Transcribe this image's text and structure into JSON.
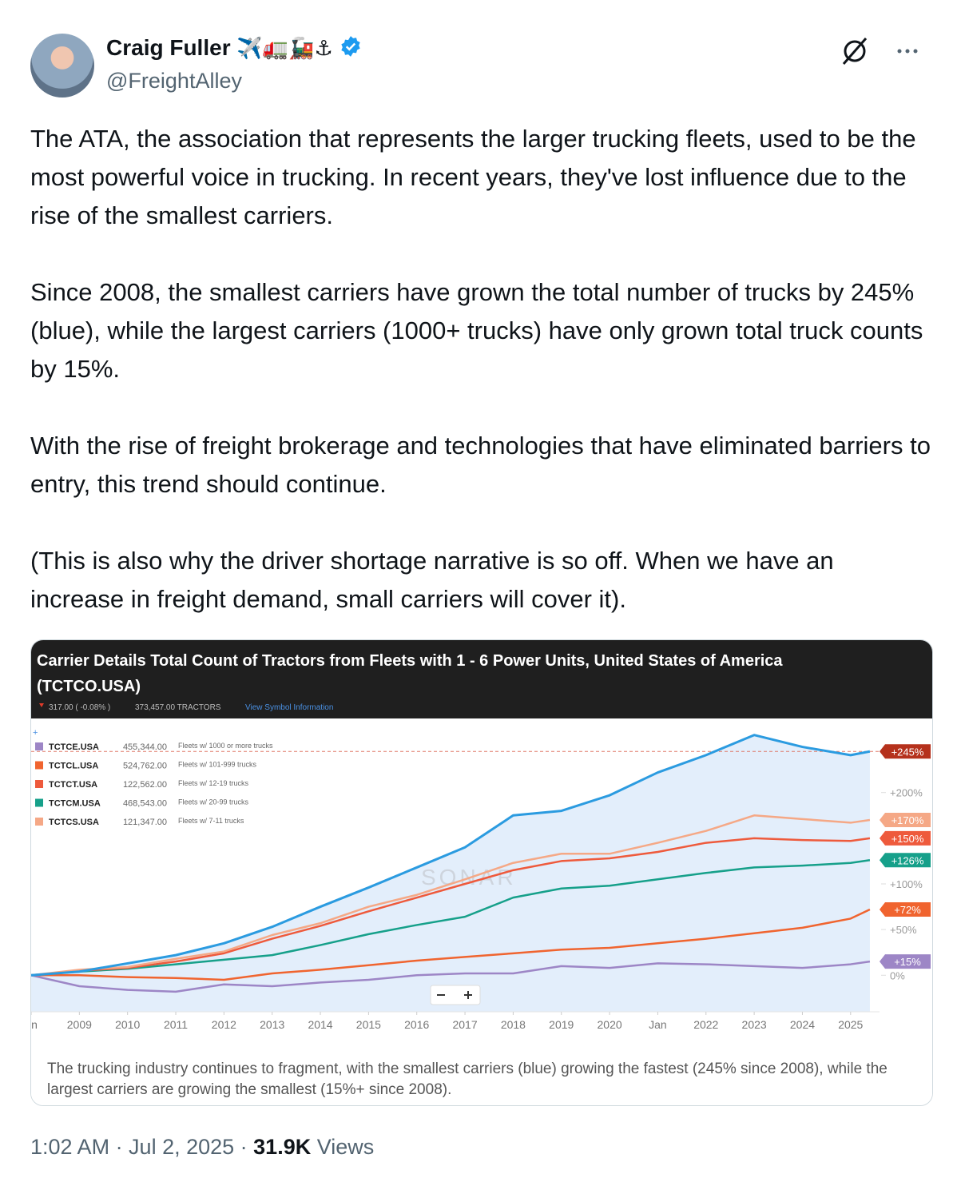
{
  "tweet": {
    "author": {
      "name": "Craig Fuller",
      "emoji": "✈️🚛🚂⚓",
      "handle": "@FreightAlley"
    },
    "paragraphs": [
      "The ATA, the association that represents the larger trucking fleets, used to be the most powerful voice in trucking. In recent years, they've lost influence due to the rise of the smallest carriers.",
      "Since 2008, the smallest carriers have grown the total number of trucks by 245% (blue), while the largest carriers (1000+ trucks) have only grown total truck counts by 15%.",
      "With the rise of freight brokerage and technologies that have eliminated barriers to entry, this trend should continue.",
      "(This is also why the driver shortage narrative is so off. When we have an increase in freight demand, small carriers will cover it)."
    ],
    "timestamp": "1:02 AM · Jul 2, 2025",
    "views_count": "31.9K",
    "views_label": "Views"
  },
  "chart_data": {
    "type": "line",
    "title": "Carrier Details Total Count of Tractors from Fleets with 1 - 6 Power Units, United States of America",
    "symbol": "(TCTCO.USA)",
    "quote": "317.00 ( -0.08% )",
    "units": "373,457.00 TRACTORS",
    "link": "View Symbol Information",
    "watermark": "SONAR",
    "caption": "The trucking industry continues to fragment, with the smallest carriers (blue) growing the fastest (245% since 2008), while the largest carriers are growing the smallest (15%+ since 2008).",
    "x": [
      2008,
      2009,
      2010,
      2011,
      2012,
      2013,
      2014,
      2015,
      2016,
      2017,
      2018,
      2019,
      2020,
      2021,
      2022,
      2023,
      2024,
      2025,
      2025.4
    ],
    "xlim": [
      2008,
      2025.6
    ],
    "xticks": [
      {
        "value": 2008,
        "label": "n"
      },
      2009,
      2010,
      2011,
      2012,
      2013,
      2014,
      2015,
      2016,
      2017,
      2018,
      2019,
      2020,
      {
        "value": 2021,
        "label": "Jan"
      },
      2022,
      2023,
      2024,
      2025
    ],
    "ylim": [
      -40,
      275
    ],
    "yticks": [
      {
        "value": 0,
        "label": "0%"
      },
      {
        "value": 50,
        "label": "+50%"
      },
      {
        "value": 100,
        "label": "+100%"
      },
      {
        "value": 200,
        "label": "+200%"
      }
    ],
    "series": [
      {
        "name": "TCTCO.USA",
        "color": "#2b9be0",
        "fill": "#e3eefb",
        "end_label": "+245%",
        "badge": "#b5311c",
        "values": [
          0,
          4,
          13,
          22,
          35,
          53,
          75,
          96,
          118,
          140,
          175,
          180,
          197,
          222,
          241,
          263,
          250,
          241,
          245
        ]
      },
      {
        "name": "TCTCS.USA",
        "color": "#f5a886",
        "end_label": "+170%",
        "legend_value": "121,347.00",
        "legend_desc": "Fleets w/ 7-11 trucks",
        "values": [
          0,
          6,
          9,
          18,
          26,
          44,
          57,
          75,
          88,
          105,
          123,
          133,
          133,
          145,
          158,
          175,
          171,
          167,
          170
        ]
      },
      {
        "name": "TCTCT.USA",
        "color": "#ee5a3c",
        "end_label": "+150%",
        "legend_value": "122,562.00",
        "legend_desc": "Fleets w/ 12-19 trucks",
        "values": [
          0,
          5,
          8,
          15,
          24,
          40,
          54,
          70,
          85,
          100,
          115,
          125,
          128,
          135,
          145,
          150,
          148,
          147,
          150
        ]
      },
      {
        "name": "TCTCM.USA",
        "color": "#16a08a",
        "end_label": "+126%",
        "legend_value": "468,543.00",
        "legend_desc": "Fleets w/ 20-99 trucks",
        "values": [
          0,
          4,
          7,
          12,
          17,
          22,
          33,
          45,
          55,
          64,
          85,
          95,
          98,
          105,
          112,
          118,
          120,
          123,
          126
        ]
      },
      {
        "name": "TCTCL.USA",
        "color": "#f0642f",
        "end_label": "+72%",
        "legend_value": "524,762.00",
        "legend_desc": "Fleets w/ 101-999 trucks",
        "values": [
          0,
          0,
          -2,
          -3,
          -5,
          2,
          6,
          11,
          16,
          20,
          24,
          28,
          30,
          35,
          40,
          46,
          52,
          62,
          72
        ]
      },
      {
        "name": "TCTCE.USA",
        "color": "#9d86c6",
        "end_label": "+15%",
        "legend_value": "455,344.00",
        "legend_desc": "Fleets w/ 1000 or more trucks",
        "values": [
          0,
          -12,
          -16,
          -18,
          -10,
          -12,
          -8,
          -5,
          0,
          2,
          2,
          10,
          8,
          13,
          12,
          10,
          8,
          12,
          15
        ]
      }
    ],
    "legend_order": [
      5,
      4,
      2,
      3,
      1
    ]
  }
}
